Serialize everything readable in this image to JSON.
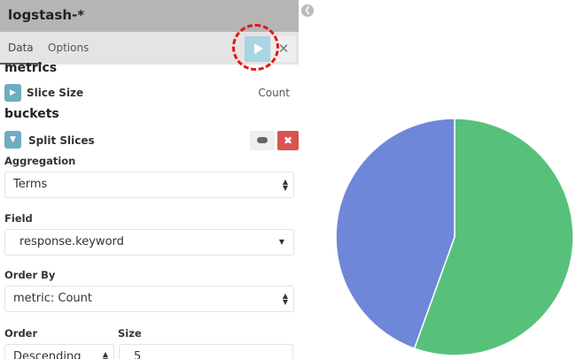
{
  "editor": {
    "index_pattern": "logstash-*",
    "tabs": [
      {
        "label": "Data",
        "active": true
      },
      {
        "label": "Options",
        "active": false
      }
    ],
    "apply_icon": "play-icon",
    "discard_icon": "close-icon",
    "metrics_heading": "metrics",
    "metric": {
      "label": "Slice Size",
      "value": "Count"
    },
    "buckets_heading": "buckets",
    "bucket": {
      "label": "Split Slices"
    },
    "aggregation": {
      "label": "Aggregation",
      "value": "Terms"
    },
    "field": {
      "label": "Field",
      "value": "response.keyword"
    },
    "order_by": {
      "label": "Order By",
      "value": "metric: Count"
    },
    "order": {
      "label": "Order",
      "value": "Descending"
    },
    "size": {
      "label": "Size",
      "value": "5"
    }
  },
  "chart_data": {
    "type": "pie",
    "slices": [
      {
        "value": 0.555,
        "color": "#57c17b"
      },
      {
        "value": 0.445,
        "color": "#6f87d8"
      }
    ]
  }
}
